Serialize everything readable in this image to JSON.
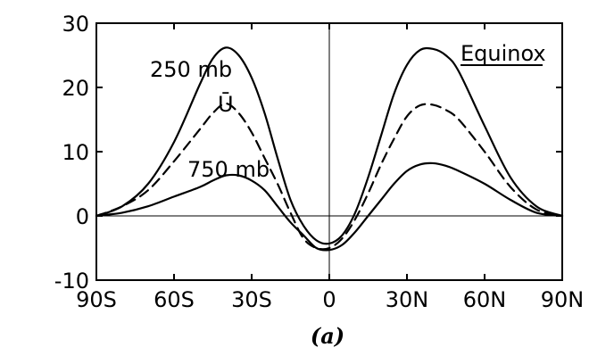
{
  "chart_data": {
    "type": "line",
    "title": "",
    "xlabel": "",
    "ylabel": "",
    "xlim": [
      -90,
      90
    ],
    "ylim": [
      -10,
      30
    ],
    "grid": false,
    "xticks": [
      {
        "value": -90,
        "label": "90S"
      },
      {
        "value": -60,
        "label": "60S"
      },
      {
        "value": -30,
        "label": "30S"
      },
      {
        "value": 0,
        "label": "0"
      },
      {
        "value": 30,
        "label": "30N"
      },
      {
        "value": 60,
        "label": "60N"
      },
      {
        "value": 90,
        "label": "90N"
      }
    ],
    "yticks": [
      {
        "value": -10,
        "label": "-10"
      },
      {
        "value": 0,
        "label": "0"
      },
      {
        "value": 10,
        "label": "10"
      },
      {
        "value": 20,
        "label": "20"
      },
      {
        "value": 30,
        "label": "30"
      }
    ],
    "reference_lines": {
      "y_zero": true,
      "x_zero": true
    },
    "series": [
      {
        "name": "250 mb",
        "style": "solid",
        "x": [
          -90,
          -80,
          -70,
          -60,
          -50,
          -45,
          -40,
          -35,
          -30,
          -25,
          -20,
          -15,
          -10,
          -5,
          0,
          5,
          10,
          15,
          20,
          25,
          30,
          35,
          40,
          45,
          50,
          60,
          70,
          80,
          90
        ],
        "y": [
          0,
          1.5,
          5,
          11.5,
          20.5,
          24.5,
          26.2,
          25,
          21.5,
          16,
          9,
          2.5,
          -1.5,
          -3.8,
          -4.3,
          -3,
          0.5,
          6,
          12.5,
          19,
          23.5,
          25.8,
          26,
          25,
          22.5,
          14,
          6,
          1.5,
          0
        ]
      },
      {
        "name": "Ū",
        "style": "dashed",
        "x": [
          -90,
          -80,
          -70,
          -60,
          -50,
          -45,
          -40,
          -35,
          -30,
          -25,
          -20,
          -15,
          -10,
          -5,
          0,
          5,
          10,
          15,
          20,
          25,
          30,
          35,
          40,
          45,
          50,
          60,
          70,
          80,
          90
        ],
        "y": [
          0,
          1.5,
          4,
          8.5,
          13.5,
          16,
          17.5,
          16,
          13,
          9,
          5,
          0.5,
          -3.5,
          -5,
          -5,
          -3.5,
          -0.5,
          3.5,
          8,
          12,
          15.5,
          17.2,
          17.3,
          16.5,
          15,
          10,
          4.5,
          1,
          0
        ]
      },
      {
        "name": "750 mb",
        "style": "solid",
        "x": [
          -90,
          -80,
          -70,
          -60,
          -50,
          -45,
          -40,
          -35,
          -30,
          -25,
          -20,
          -15,
          -10,
          -5,
          0,
          5,
          10,
          15,
          20,
          25,
          30,
          35,
          40,
          45,
          50,
          60,
          70,
          80,
          90
        ],
        "y": [
          0,
          0.5,
          1.5,
          3,
          4.5,
          5.5,
          6.3,
          6.3,
          5.5,
          4,
          1.5,
          -1,
          -3,
          -5,
          -5.3,
          -4.5,
          -2.5,
          0,
          2.5,
          5,
          7,
          8,
          8.2,
          7.8,
          7,
          5,
          2.5,
          0.5,
          0
        ]
      }
    ],
    "annotations": {
      "label_250": "250 mb",
      "label_ubar": "Ū",
      "label_750": "750 mb",
      "equinox": "Equinox",
      "caption": "(a)"
    }
  }
}
